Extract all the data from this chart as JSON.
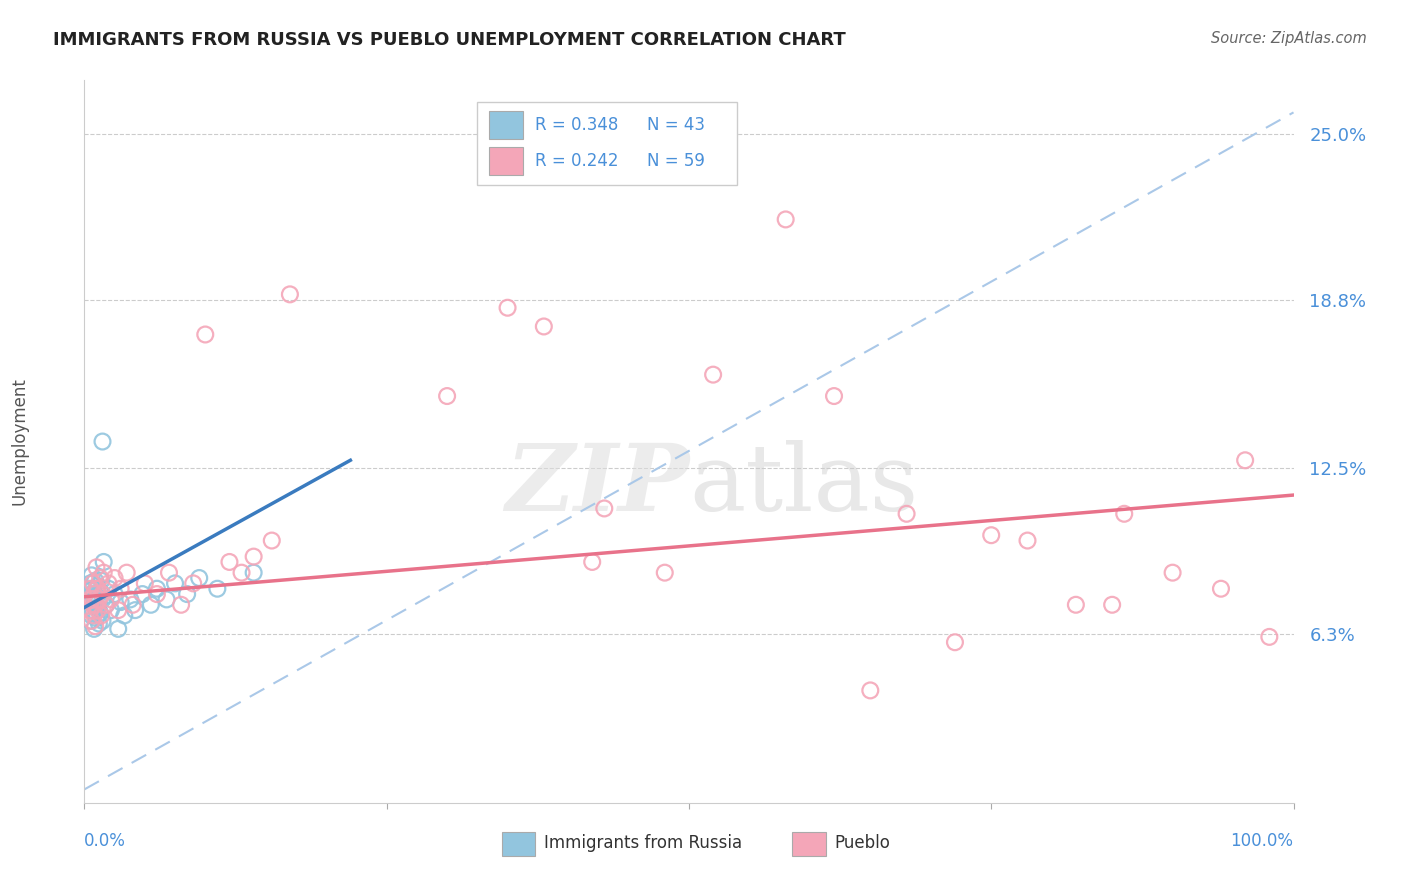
{
  "title": "IMMIGRANTS FROM RUSSIA VS PUEBLO UNEMPLOYMENT CORRELATION CHART",
  "source": "Source: ZipAtlas.com",
  "ylabel": "Unemployment",
  "ytick_vals": [
    0.0,
    0.063,
    0.125,
    0.188,
    0.25
  ],
  "ytick_labels": [
    "",
    "6.3%",
    "12.5%",
    "18.8%",
    "25.0%"
  ],
  "xlim": [
    0.0,
    1.0
  ],
  "ylim": [
    0.0,
    0.27
  ],
  "color_blue": "#92c5de",
  "color_pink": "#f4a6b8",
  "color_blue_line": "#3a7bbf",
  "color_pink_line": "#e8728a",
  "color_dashed": "#aac8e8",
  "background": "#ffffff",
  "blue_points_x": [
    0.005,
    0.005,
    0.005,
    0.006,
    0.006,
    0.006,
    0.007,
    0.007,
    0.008,
    0.008,
    0.009,
    0.009,
    0.01,
    0.01,
    0.011,
    0.011,
    0.012,
    0.012,
    0.013,
    0.013,
    0.014,
    0.015,
    0.015,
    0.016,
    0.018,
    0.02,
    0.022,
    0.025,
    0.028,
    0.03,
    0.033,
    0.038,
    0.042,
    0.048,
    0.055,
    0.06,
    0.068,
    0.075,
    0.085,
    0.095,
    0.11,
    0.14,
    0.015
  ],
  "blue_points_y": [
    0.068,
    0.075,
    0.082,
    0.07,
    0.078,
    0.085,
    0.072,
    0.08,
    0.065,
    0.074,
    0.076,
    0.083,
    0.069,
    0.077,
    0.073,
    0.081,
    0.067,
    0.075,
    0.071,
    0.079,
    0.083,
    0.068,
    0.076,
    0.09,
    0.074,
    0.08,
    0.072,
    0.078,
    0.065,
    0.075,
    0.07,
    0.076,
    0.072,
    0.078,
    0.074,
    0.08,
    0.076,
    0.082,
    0.078,
    0.084,
    0.08,
    0.086,
    0.135
  ],
  "pink_points_x": [
    0.005,
    0.005,
    0.006,
    0.006,
    0.007,
    0.007,
    0.008,
    0.008,
    0.009,
    0.009,
    0.01,
    0.01,
    0.011,
    0.011,
    0.012,
    0.013,
    0.014,
    0.015,
    0.016,
    0.018,
    0.02,
    0.022,
    0.025,
    0.028,
    0.03,
    0.035,
    0.04,
    0.05,
    0.06,
    0.07,
    0.08,
    0.09,
    0.1,
    0.12,
    0.13,
    0.14,
    0.155,
    0.17,
    0.3,
    0.35,
    0.38,
    0.42,
    0.48,
    0.52,
    0.58,
    0.62,
    0.68,
    0.72,
    0.78,
    0.82,
    0.86,
    0.9,
    0.94,
    0.96,
    0.98,
    0.65,
    0.75,
    0.85,
    0.43
  ],
  "pink_points_y": [
    0.072,
    0.08,
    0.068,
    0.076,
    0.074,
    0.082,
    0.07,
    0.078,
    0.066,
    0.074,
    0.08,
    0.088,
    0.072,
    0.08,
    0.076,
    0.084,
    0.07,
    0.078,
    0.086,
    0.074,
    0.082,
    0.076,
    0.084,
    0.072,
    0.08,
    0.086,
    0.074,
    0.082,
    0.078,
    0.086,
    0.074,
    0.082,
    0.175,
    0.09,
    0.086,
    0.092,
    0.098,
    0.19,
    0.152,
    0.185,
    0.178,
    0.09,
    0.086,
    0.16,
    0.218,
    0.152,
    0.108,
    0.06,
    0.098,
    0.074,
    0.108,
    0.086,
    0.08,
    0.128,
    0.062,
    0.042,
    0.1,
    0.074,
    0.11
  ],
  "blue_line_x": [
    0.0,
    0.22
  ],
  "blue_line_y": [
    0.073,
    0.128
  ],
  "pink_line_x": [
    0.0,
    1.0
  ],
  "pink_line_y": [
    0.077,
    0.115
  ],
  "dash_line_x": [
    0.0,
    1.0
  ],
  "dash_line_y": [
    0.005,
    0.258
  ]
}
